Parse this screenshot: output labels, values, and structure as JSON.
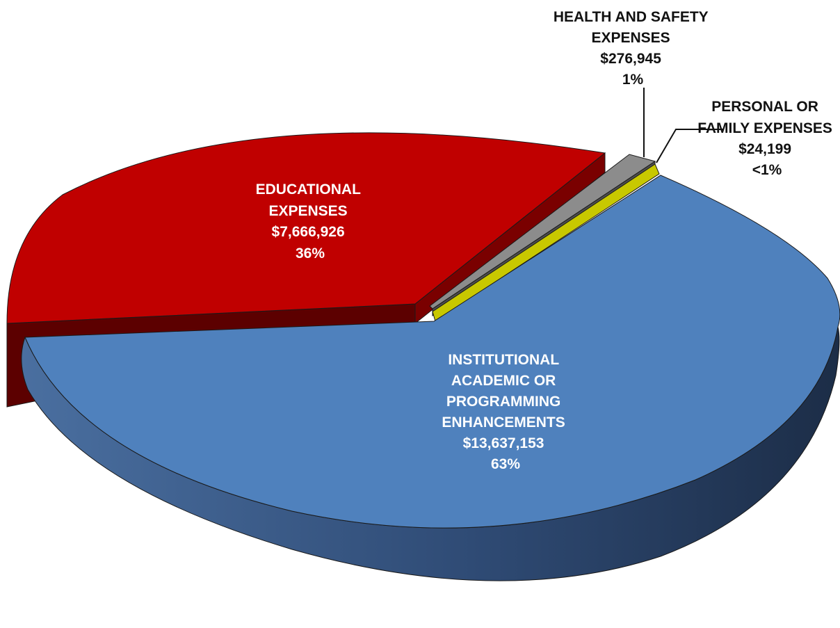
{
  "chart_data": {
    "type": "pie",
    "style": "3d-exploded",
    "slices": [
      {
        "label_lines": [
          "INSTITUTIONAL",
          "ACADEMIC OR",
          "PROGRAMMING",
          "ENHANCEMENTS"
        ],
        "value": 13637153,
        "value_text": "$13,637,153",
        "percent_text": "63%",
        "color": "#4F81BD",
        "side_color": "#2E4A73"
      },
      {
        "label_lines": [
          "EDUCATIONAL",
          "EXPENSES"
        ],
        "value": 7666926,
        "value_text": "$7,666,926",
        "percent_text": "36%",
        "color": "#C00000",
        "side_color": "#5C0000"
      },
      {
        "label_lines": [
          "HEALTH AND SAFETY",
          "EXPENSES"
        ],
        "value": 276945,
        "value_text": "$276,945",
        "percent_text": "1%",
        "color": "#8C8C8C",
        "side_color": "#4D4D4D"
      },
      {
        "label_lines": [
          "PERSONAL OR",
          "FAMILY EXPENSES"
        ],
        "value": 24199,
        "value_text": "$24,199",
        "percent_text": "<1%",
        "color": "#C8C800",
        "side_color": "#7A7A00"
      }
    ]
  }
}
